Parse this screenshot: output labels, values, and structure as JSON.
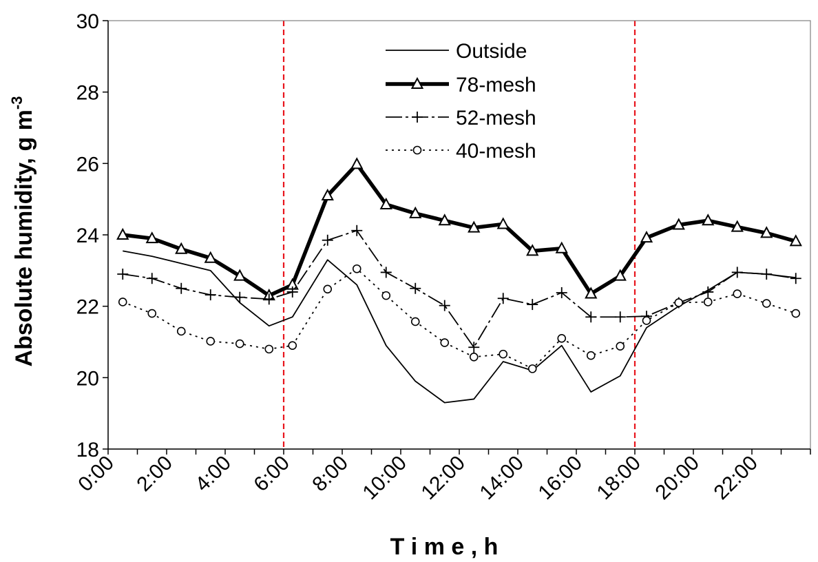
{
  "chart_data": {
    "type": "line",
    "title": "",
    "xlabel": "T i m e ,  h",
    "ylabel": "Absolute humidity, g m",
    "ylabel_superscript": "-3",
    "xlim": [
      0,
      24
    ],
    "ylim": [
      18,
      30
    ],
    "yticks": [
      18,
      20,
      22,
      24,
      26,
      28,
      30
    ],
    "xtick_values": [
      0,
      2,
      4,
      6,
      8,
      10,
      12,
      14,
      16,
      18,
      20,
      22
    ],
    "xtick_labels": [
      "0:00",
      "2:00",
      "4:00",
      "6:00",
      "8:00",
      "10:00",
      "12:00",
      "14:00",
      "16:00",
      "18:00",
      "20:00",
      "22:00"
    ],
    "grid": false,
    "legend_position": "top-center",
    "reference_lines": [
      6,
      18
    ],
    "reference_line_color": "#e8141c",
    "x": [
      0.5,
      1.5,
      2.5,
      3.5,
      4.5,
      5.5,
      6.3,
      7.5,
      8.5,
      9.5,
      10.5,
      11.5,
      12.5,
      13.5,
      14.5,
      15.5,
      16.5,
      17.5,
      18.4,
      19.5,
      20.5,
      21.5,
      22.5,
      23.5
    ],
    "series": [
      {
        "name": "Outside",
        "style": "thin-solid",
        "values": [
          23.55,
          23.4,
          23.2,
          23.0,
          22.1,
          21.45,
          21.7,
          23.3,
          22.6,
          20.9,
          19.9,
          19.3,
          19.4,
          20.45,
          20.2,
          20.9,
          19.6,
          20.05,
          21.4,
          22.0,
          22.45,
          22.95,
          22.9,
          22.8
        ]
      },
      {
        "name": "78-mesh",
        "style": "thick-solid-triangle",
        "values": [
          24.0,
          23.9,
          23.6,
          23.35,
          22.85,
          22.3,
          22.6,
          25.1,
          25.98,
          24.85,
          24.6,
          24.4,
          24.2,
          24.3,
          23.55,
          23.62,
          22.35,
          22.85,
          23.92,
          24.28,
          24.4,
          24.22,
          24.05,
          23.82
        ]
      },
      {
        "name": "52-mesh",
        "style": "dash-plus",
        "values": [
          22.9,
          22.78,
          22.5,
          22.32,
          22.25,
          22.2,
          22.4,
          23.85,
          24.12,
          22.95,
          22.5,
          22.02,
          20.85,
          22.22,
          22.05,
          22.38,
          21.7,
          21.7,
          21.72,
          22.1,
          22.4,
          22.95,
          22.9,
          22.78
        ]
      },
      {
        "name": "40-mesh",
        "style": "dot-circle",
        "values": [
          22.12,
          21.8,
          21.3,
          21.02,
          20.95,
          20.8,
          20.9,
          22.48,
          23.05,
          22.3,
          21.57,
          20.98,
          20.58,
          20.66,
          20.25,
          21.1,
          20.62,
          20.88,
          21.6,
          22.1,
          22.12,
          22.35,
          22.08,
          21.8
        ]
      }
    ]
  }
}
